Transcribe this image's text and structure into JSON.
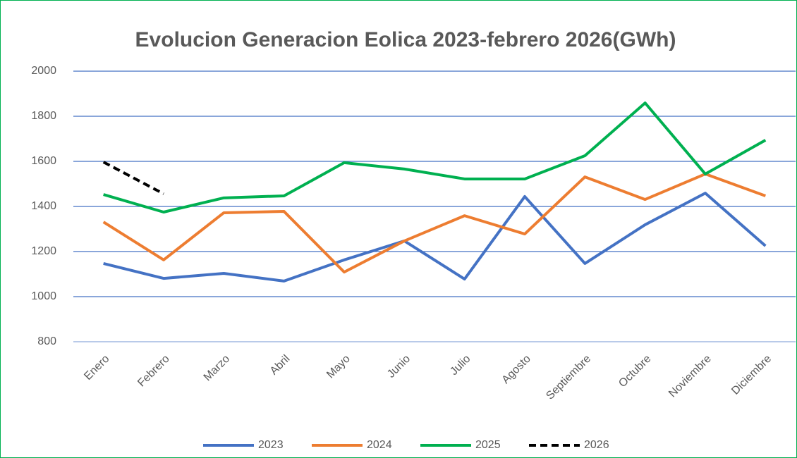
{
  "chart_data": {
    "type": "line",
    "title": "Evolucion Generacion Eolica 2023-febrero 2026(GWh)",
    "categories": [
      "Enero",
      "Febrero",
      "Marzo",
      "Abril",
      "Mayo",
      "Junio",
      "Julio",
      "Agosto",
      "Septiembre",
      "Octubre",
      "Noviembre",
      "Diciembre"
    ],
    "series": [
      {
        "name": "2023",
        "color": "#4472c4",
        "dashed": false,
        "values": [
          1147,
          1081,
          1103,
          1069,
          1163,
          1247,
          1078,
          1444,
          1147,
          1319,
          1459,
          1225
        ]
      },
      {
        "name": "2024",
        "color": "#ed7d31",
        "dashed": false,
        "values": [
          1331,
          1163,
          1372,
          1378,
          1109,
          1247,
          1359,
          1278,
          1531,
          1431,
          1544,
          1447
        ]
      },
      {
        "name": "2025",
        "color": "#00b050",
        "dashed": false,
        "values": [
          1453,
          1375,
          1438,
          1447,
          1594,
          1566,
          1522,
          1522,
          1625,
          1859,
          1544,
          1694
        ]
      },
      {
        "name": "2026",
        "color": "#000000",
        "dashed": true,
        "values": [
          1597,
          1456,
          null,
          null,
          null,
          null,
          null,
          null,
          null,
          null,
          null,
          null
        ]
      }
    ],
    "ylim": [
      800,
      2000
    ],
    "yticks": [
      800,
      1000,
      1200,
      1400,
      1600,
      1800,
      2000
    ],
    "grid": true,
    "legend": "bottom"
  }
}
